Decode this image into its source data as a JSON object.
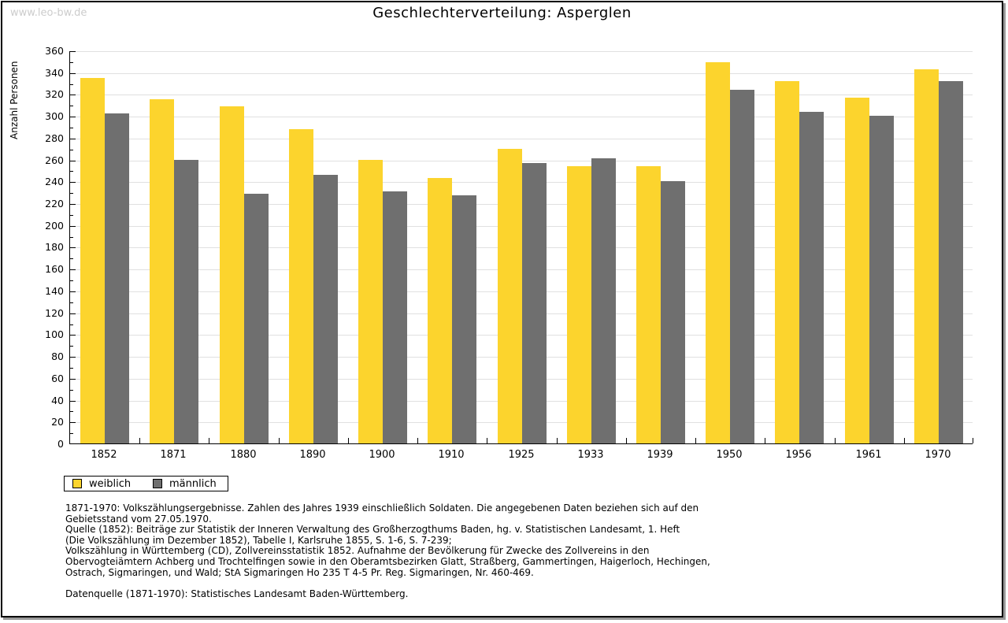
{
  "watermark": "www.leo-bw.de",
  "header": {
    "title": "Geschlechterverteilung: Asperglen"
  },
  "chart_data": {
    "type": "bar",
    "title": "Geschlechterverteilung: Asperglen",
    "xlabel": "",
    "ylabel": "Anzahl Personen",
    "ylim": [
      0,
      360
    ],
    "ytick_step": 20,
    "ytick_minor_step": 10,
    "grid": true,
    "legend_position": "bottom-left",
    "categories": [
      "1852",
      "1871",
      "1880",
      "1890",
      "1900",
      "1910",
      "1925",
      "1933",
      "1939",
      "1950",
      "1956",
      "1961",
      "1970"
    ],
    "series": [
      {
        "name": "weiblich",
        "color": "#fcd42d",
        "values": [
          335,
          315,
          309,
          288,
          260,
          243,
          270,
          254,
          254,
          349,
          332,
          317,
          343
        ]
      },
      {
        "name": "männlich",
        "color": "#6f6f6f",
        "values": [
          302,
          260,
          229,
          246,
          231,
          227,
          257,
          261,
          240,
          324,
          304,
          300,
          332
        ]
      }
    ]
  },
  "legend": {
    "items": [
      {
        "label": "weiblich",
        "color": "#fcd42d"
      },
      {
        "label": "männlich",
        "color": "#6f6f6f"
      }
    ]
  },
  "footnotes": {
    "lines": [
      "1871-1970: Volkszählungsergebnisse. Zahlen des Jahres 1939 einschließlich Soldaten. Die angegebenen Daten beziehen sich auf den",
      "Gebietsstand vom 27.05.1970.",
      "Quelle (1852): Beiträge zur Statistik der Inneren Verwaltung des Großherzogthums Baden, hg. v. Statistischen Landesamt, 1. Heft",
      "(Die Volkszählung im Dezember 1852), Tabelle I, Karlsruhe 1855, S. 1-6, S. 7-239;",
      "Volkszählung in Württemberg (CD), Zollvereinsstatistik 1852. Aufnahme der Bevölkerung für Zwecke des Zollvereins in den",
      "Obervogteiämtern Achberg und Trochtelfingen sowie in den Oberamtsbezirken Glatt, Straßberg, Gammertingen, Haigerloch, Hechingen,",
      "Ostrach, Sigmaringen, und Wald; StA Sigmaringen Ho 235 T 4-5 Pr. Reg. Sigmaringen, Nr. 460-469.",
      "",
      "Datenquelle (1871-1970): Statistisches Landesamt Baden-Württemberg."
    ]
  },
  "colors": {
    "weiblich": "#fcd42d",
    "maennlich": "#6f6f6f",
    "gridline": "#e0e0e0",
    "watermark": "#cccccc",
    "frame_border": "#000000",
    "frame_shadow": "#999999"
  }
}
